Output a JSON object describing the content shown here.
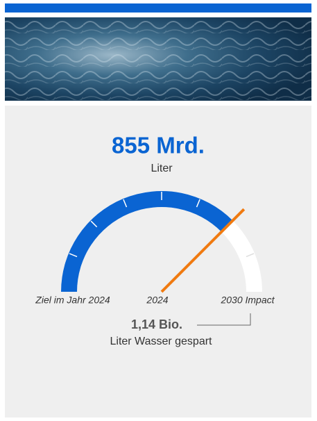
{
  "gauge": {
    "value": 855,
    "max": 1140,
    "value_label": "855 Mrd.",
    "unit": "Liter",
    "max_label": "1,14 Bio.",
    "max_caption": "Liter Wasser gespart",
    "labels": [
      "Ziel im Jahr 2024",
      "2024",
      "2030 Impact"
    ],
    "color": "#0a64d2",
    "needle_color": "#f07a10"
  }
}
